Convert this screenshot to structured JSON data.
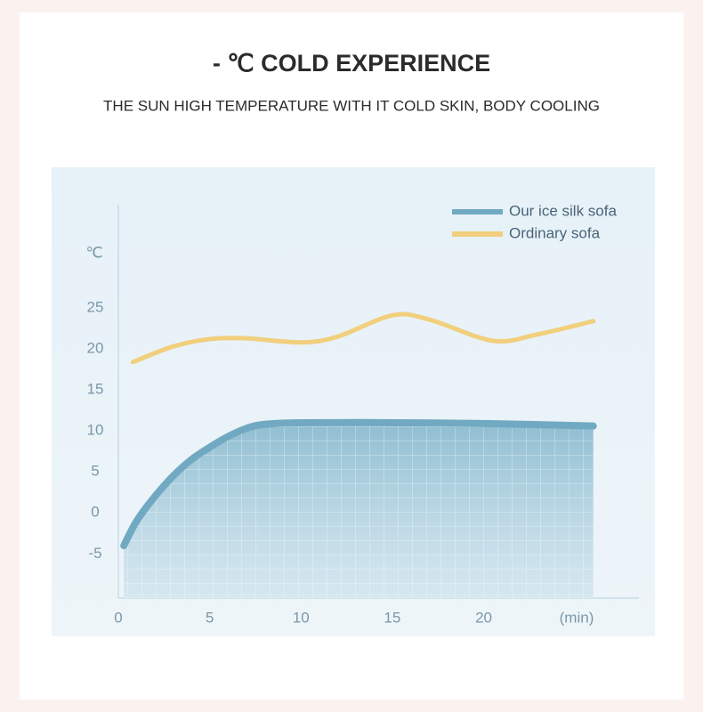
{
  "chart_data": {
    "type": "line",
    "title": "- ℃ COLD EXPERIENCE",
    "subtitle": "THE SUN HIGH TEMPERATURE WITH IT COLD SKIN, BODY COOLING",
    "ylabel": "℃",
    "xlabel": "(min)",
    "xlim": [
      0,
      28.5
    ],
    "xticks": [
      0,
      5,
      10,
      15,
      20
    ],
    "ylim": [
      -10.4,
      37.6
    ],
    "yticks": [
      -5,
      0,
      5,
      10,
      15,
      20,
      25
    ],
    "series": [
      {
        "name": "Our ice silk sofa",
        "color": "#72a9c2",
        "fill_area": true,
        "x": [
          0.3,
          1,
          2,
          3,
          4,
          5,
          6,
          7,
          8,
          10,
          15,
          20,
          26
        ],
        "values": [
          -4,
          -1,
          2,
          4.5,
          6.5,
          8,
          9.3,
          10.3,
          10.8,
          11,
          11,
          10.9,
          10.6
        ]
      },
      {
        "name": "Ordinary sofa",
        "color": "#f1cf7c",
        "x": [
          0.8,
          3,
          5,
          7,
          10,
          12,
          15,
          17,
          20.5,
          23,
          26
        ],
        "values": [
          18.4,
          20.3,
          21.2,
          21.3,
          20.8,
          21.5,
          24.1,
          23.6,
          21,
          21.8,
          23.4
        ]
      }
    ]
  }
}
